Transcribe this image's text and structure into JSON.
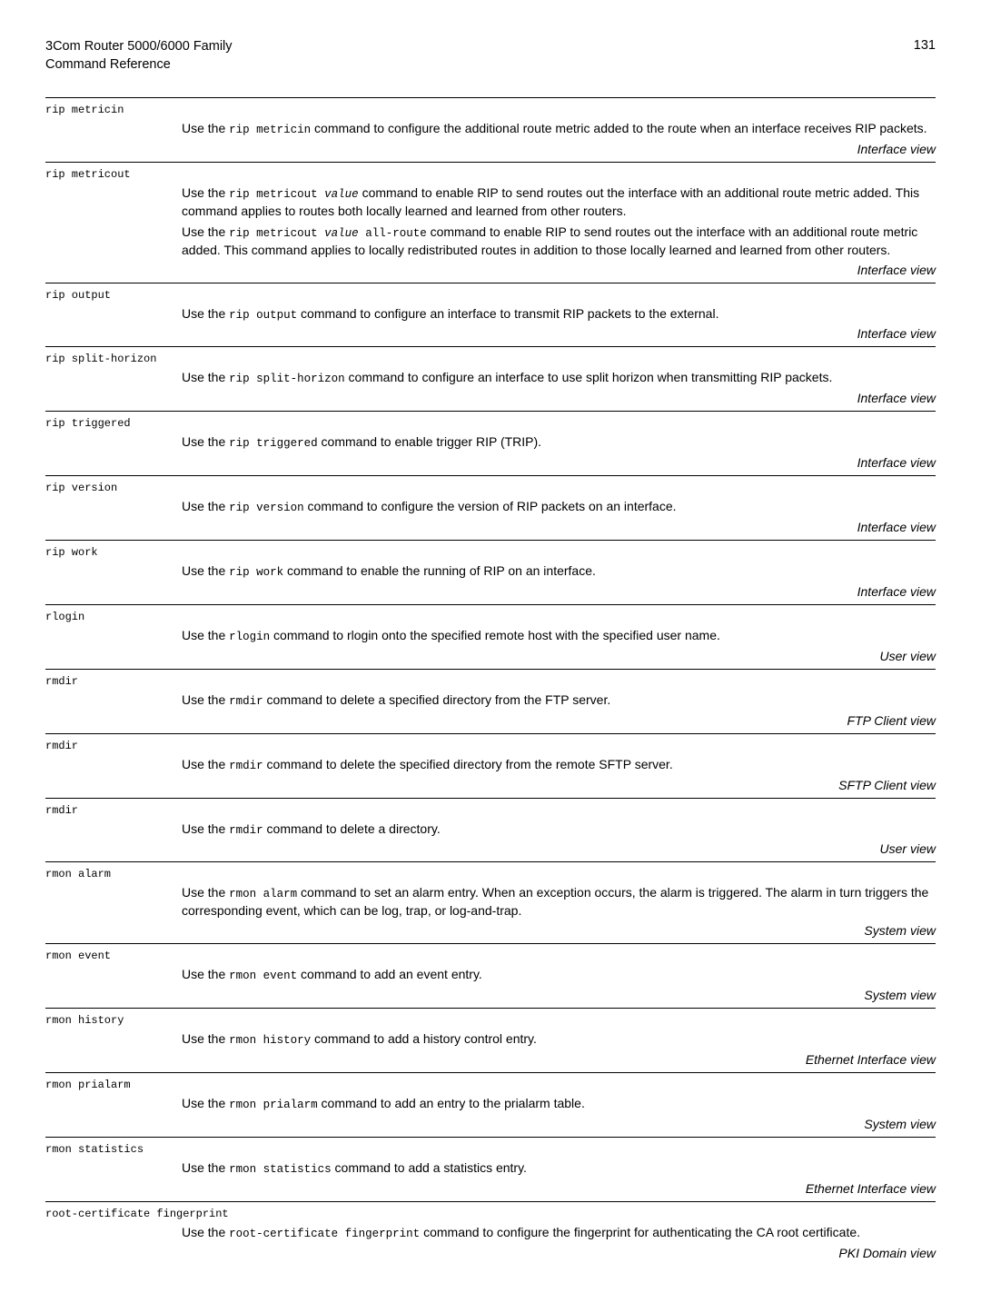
{
  "header": {
    "title_line1": "3Com Router 5000/6000 Family",
    "title_line2": "Command Reference",
    "page_number": "131"
  },
  "entries": [
    {
      "cmd": "rip metricin",
      "paras": [
        [
          {
            "t": "text",
            "v": "Use the "
          },
          {
            "t": "code",
            "v": "rip metricin"
          },
          {
            "t": "text",
            "v": " command to configure the additional route metric added to the route when an interface receives RIP packets."
          }
        ]
      ],
      "view": "Interface view"
    },
    {
      "cmd": "rip metricout",
      "paras": [
        [
          {
            "t": "text",
            "v": "Use the "
          },
          {
            "t": "code",
            "v": "rip metricout "
          },
          {
            "t": "codei",
            "v": "value"
          },
          {
            "t": "text",
            "v": " command to enable RIP to send routes out the interface with an additional route metric added. This command applies to routes both locally learned and learned from other routers."
          }
        ],
        [
          {
            "t": "text",
            "v": "Use the "
          },
          {
            "t": "code",
            "v": "rip metricout "
          },
          {
            "t": "codei",
            "v": "value"
          },
          {
            "t": "code",
            "v": " all-route"
          },
          {
            "t": "text",
            "v": " command to enable RIP to send routes out the interface with an additional route metric added. This command applies to locally redistributed routes in addition to those locally learned and learned from other routers."
          }
        ]
      ],
      "view": "Interface view"
    },
    {
      "cmd": "rip output",
      "paras": [
        [
          {
            "t": "text",
            "v": "Use the "
          },
          {
            "t": "code",
            "v": "rip output"
          },
          {
            "t": "text",
            "v": " command to configure an interface to transmit RIP packets to the external."
          }
        ]
      ],
      "view": "Interface view"
    },
    {
      "cmd": "rip split-horizon",
      "paras": [
        [
          {
            "t": "text",
            "v": "Use the "
          },
          {
            "t": "code",
            "v": "rip split-horizon"
          },
          {
            "t": "text",
            "v": " command to configure an interface to use split horizon when transmitting RIP packets."
          }
        ]
      ],
      "view": "Interface view"
    },
    {
      "cmd": "rip triggered",
      "paras": [
        [
          {
            "t": "text",
            "v": "Use the "
          },
          {
            "t": "code",
            "v": "rip triggered"
          },
          {
            "t": "text",
            "v": " command to enable trigger RIP (TRIP)."
          }
        ]
      ],
      "view": "Interface view"
    },
    {
      "cmd": "rip version",
      "paras": [
        [
          {
            "t": "text",
            "v": "Use the "
          },
          {
            "t": "code",
            "v": "rip version"
          },
          {
            "t": "text",
            "v": " command to configure the version of RIP packets on an interface."
          }
        ]
      ],
      "view": "Interface view"
    },
    {
      "cmd": "rip work",
      "paras": [
        [
          {
            "t": "text",
            "v": "Use the "
          },
          {
            "t": "code",
            "v": "rip work"
          },
          {
            "t": "text",
            "v": " command to enable the running of RIP on an interface."
          }
        ]
      ],
      "view": "Interface view"
    },
    {
      "cmd": "rlogin",
      "paras": [
        [
          {
            "t": "text",
            "v": "Use the "
          },
          {
            "t": "code",
            "v": "rlogin"
          },
          {
            "t": "text",
            "v": " command to rlogin onto the specified remote host with the specified user name."
          }
        ]
      ],
      "view": "User view"
    },
    {
      "cmd": "rmdir",
      "paras": [
        [
          {
            "t": "text",
            "v": "Use the "
          },
          {
            "t": "code",
            "v": "rmdir"
          },
          {
            "t": "text",
            "v": " command to delete a specified directory from the FTP server."
          }
        ]
      ],
      "view": "FTP Client view"
    },
    {
      "cmd": "rmdir",
      "paras": [
        [
          {
            "t": "text",
            "v": "Use the "
          },
          {
            "t": "code",
            "v": "rmdir"
          },
          {
            "t": "text",
            "v": " command to delete the specified directory from the remote SFTP server."
          }
        ]
      ],
      "view": "SFTP Client view"
    },
    {
      "cmd": "rmdir",
      "paras": [
        [
          {
            "t": "text",
            "v": "Use the "
          },
          {
            "t": "code",
            "v": "rmdir"
          },
          {
            "t": "text",
            "v": " command to delete a directory."
          }
        ]
      ],
      "view": "User view"
    },
    {
      "cmd": "rmon alarm",
      "paras": [
        [
          {
            "t": "text",
            "v": "Use the "
          },
          {
            "t": "code",
            "v": "rmon alarm"
          },
          {
            "t": "text",
            "v": " command to set an alarm entry. When an exception occurs, the alarm is triggered. The alarm in turn triggers the corresponding event, which can be log, trap, or log-and-trap."
          }
        ]
      ],
      "view": "System view"
    },
    {
      "cmd": "rmon event",
      "paras": [
        [
          {
            "t": "text",
            "v": "Use the "
          },
          {
            "t": "code",
            "v": "rmon event"
          },
          {
            "t": "text",
            "v": " command to add an event entry."
          }
        ]
      ],
      "view": "System view"
    },
    {
      "cmd": "rmon history",
      "paras": [
        [
          {
            "t": "text",
            "v": "Use the "
          },
          {
            "t": "code",
            "v": "rmon history"
          },
          {
            "t": "text",
            "v": " command to add a history control entry."
          }
        ]
      ],
      "view": "Ethernet Interface view"
    },
    {
      "cmd": "rmon prialarm",
      "paras": [
        [
          {
            "t": "text",
            "v": "Use the "
          },
          {
            "t": "code",
            "v": "rmon prialarm"
          },
          {
            "t": "text",
            "v": " command to add an entry to the prialarm table."
          }
        ]
      ],
      "view": "System view"
    },
    {
      "cmd": "rmon statistics",
      "paras": [
        [
          {
            "t": "text",
            "v": "Use the "
          },
          {
            "t": "code",
            "v": "rmon statistics"
          },
          {
            "t": "text",
            "v": " command to add a statistics entry."
          }
        ]
      ],
      "view": "Ethernet Interface view"
    },
    {
      "cmd": "root-certificate fingerprint",
      "paras": [
        [
          {
            "t": "text",
            "v": "Use the "
          },
          {
            "t": "code",
            "v": "root-certificate fingerprint"
          },
          {
            "t": "text",
            "v": " command to configure the fingerprint for authenticating the CA root certificate."
          }
        ]
      ],
      "view": "PKI Domain view"
    }
  ]
}
